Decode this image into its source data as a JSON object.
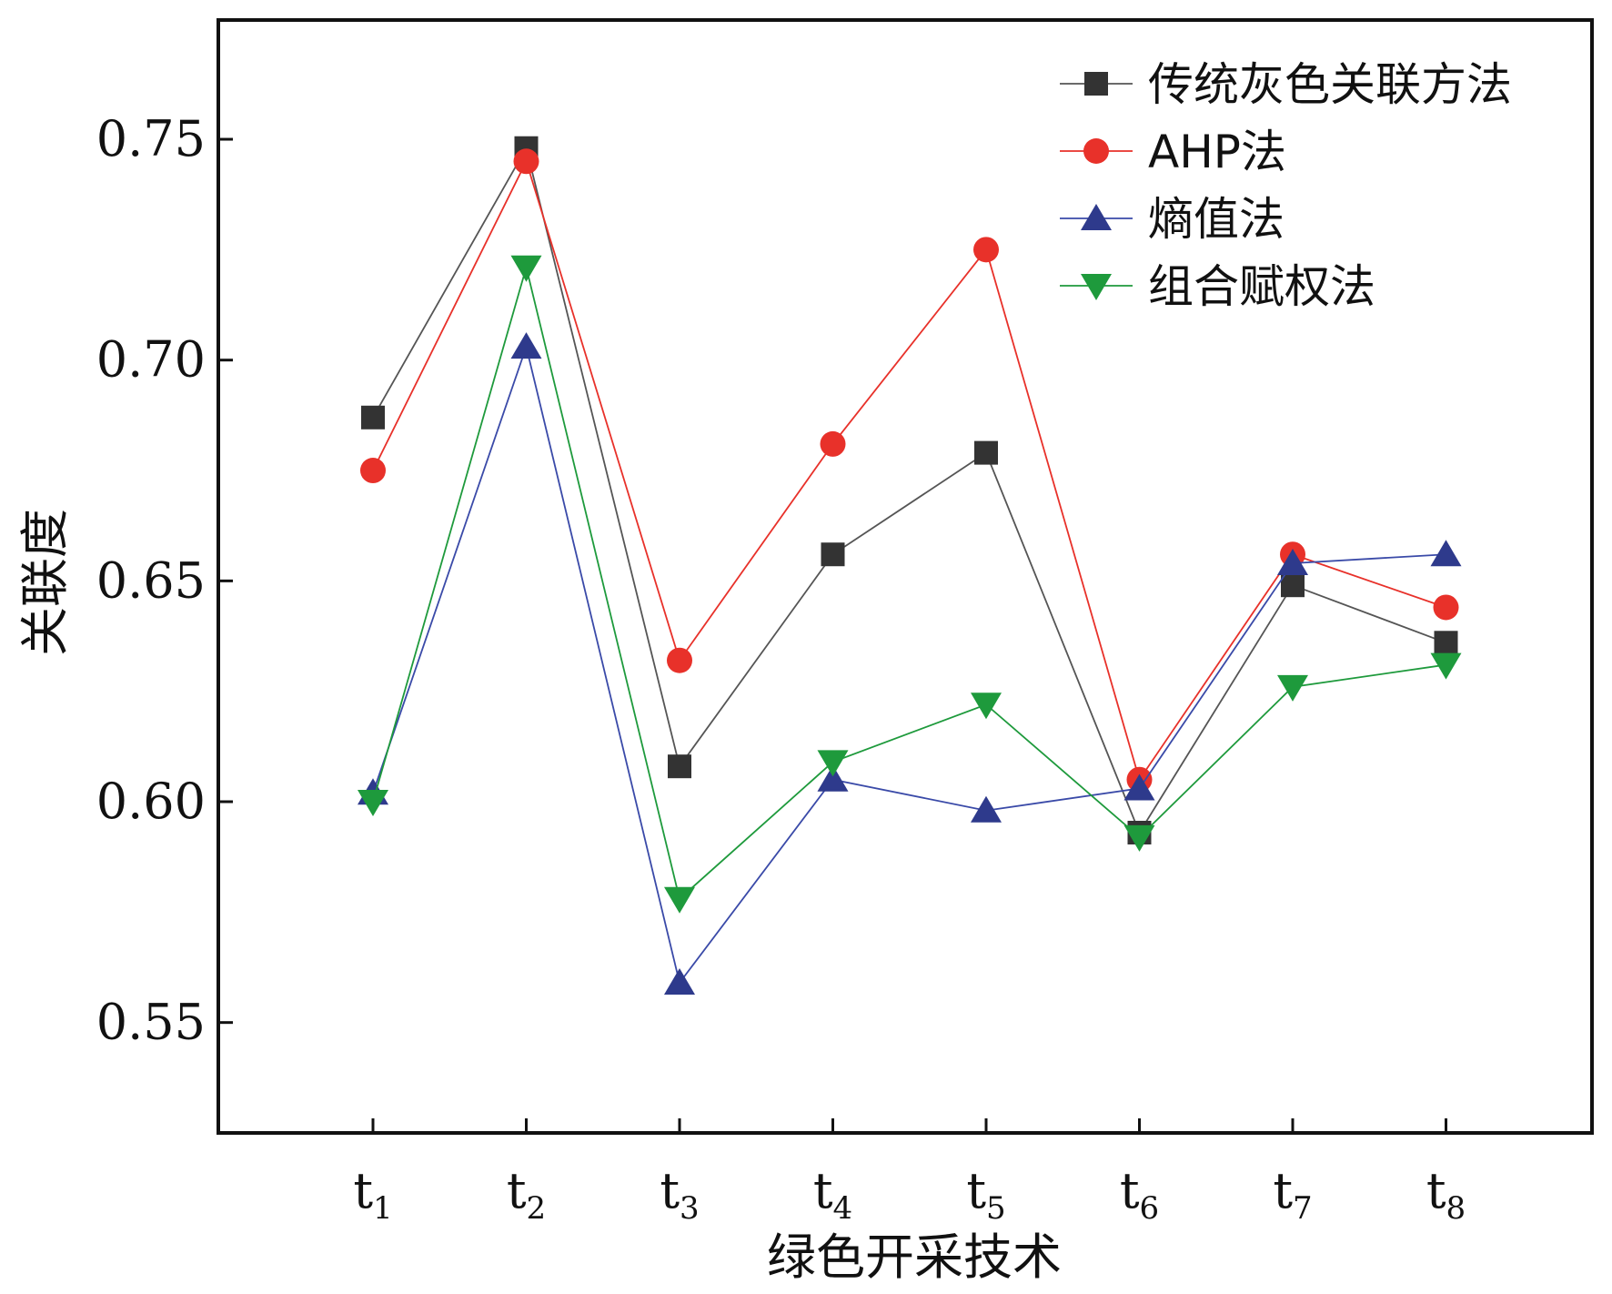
{
  "chart_data": {
    "type": "line",
    "title": "",
    "xlabel": "绿色开采技术",
    "ylabel": "关联度",
    "categories": [
      {
        "base": "t",
        "sub": "1"
      },
      {
        "base": "t",
        "sub": "2"
      },
      {
        "base": "t",
        "sub": "3"
      },
      {
        "base": "t",
        "sub": "4"
      },
      {
        "base": "t",
        "sub": "5"
      },
      {
        "base": "t",
        "sub": "6"
      },
      {
        "base": "t",
        "sub": "7"
      },
      {
        "base": "t",
        "sub": "8"
      }
    ],
    "ylim": [
      0.525,
      0.777
    ],
    "yticks": [
      "0.55",
      "0.60",
      "0.65",
      "0.70",
      "0.75"
    ],
    "grid": false,
    "legend_position": "top-right",
    "series": [
      {
        "name": "传统灰色关联方法",
        "marker": "square",
        "color": "#333333",
        "line_color": "#555555",
        "values": [
          0.687,
          0.748,
          0.608,
          0.656,
          0.679,
          0.593,
          0.649,
          0.636
        ]
      },
      {
        "name": "AHP法",
        "marker": "circle",
        "color": "#e8312a",
        "line_color": "#e8312a",
        "values": [
          0.675,
          0.745,
          0.632,
          0.681,
          0.725,
          0.605,
          0.656,
          0.644
        ]
      },
      {
        "name": "熵值法",
        "marker": "triangle-up",
        "color": "#2e3a8c",
        "line_color": "#3a4aa8",
        "values": [
          0.602,
          0.703,
          0.559,
          0.605,
          0.598,
          0.603,
          0.654,
          0.656
        ]
      },
      {
        "name": "组合赋权法",
        "marker": "triangle-down",
        "color": "#1e9a3c",
        "line_color": "#1e9a3c",
        "values": [
          0.6,
          0.721,
          0.578,
          0.609,
          0.622,
          0.592,
          0.626,
          0.631
        ]
      }
    ]
  }
}
